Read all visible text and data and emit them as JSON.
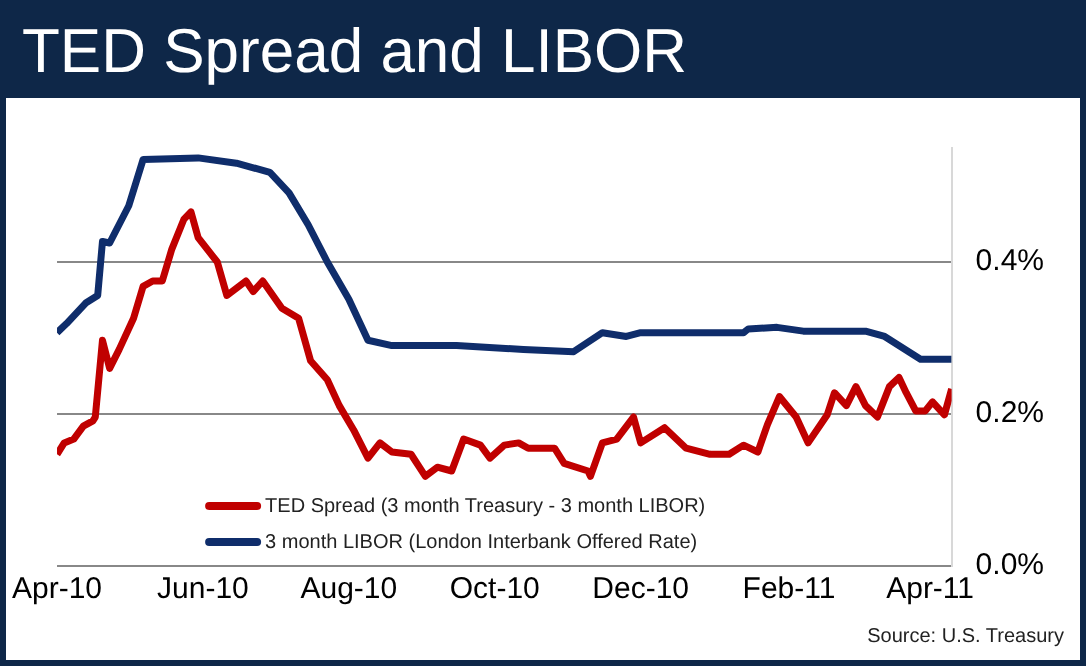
{
  "chart_data": {
    "type": "line",
    "title": "TED Spread and LIBOR",
    "xlim": [
      "2010-04-01",
      "2011-04-10"
    ],
    "xticks": [
      {
        "value": "2010-04-01",
        "label": "Apr-10"
      },
      {
        "value": "2010-06-01",
        "label": "Jun-10"
      },
      {
        "value": "2010-08-01",
        "label": "Aug-10"
      },
      {
        "value": "2010-10-01",
        "label": "Oct-10"
      },
      {
        "value": "2010-12-01",
        "label": "Dec-10"
      },
      {
        "value": "2011-02-01",
        "label": "Feb-11"
      },
      {
        "value": "2011-04-01",
        "label": "Apr-11"
      }
    ],
    "yticks": [
      {
        "value": 0,
        "label": "0.0%"
      },
      {
        "value": 0.2,
        "label": "0.2%"
      },
      {
        "value": 0.4,
        "label": "0.4%"
      }
    ],
    "ylim": [
      0,
      0.55
    ],
    "grid": "y",
    "legend": "bottom",
    "series": [
      {
        "name": "TED Spread (3 month Treasury - 3 month LIBOR)",
        "color": "#c00000",
        "x": [
          "2010-04-01",
          "2010-04-04",
          "2010-04-08",
          "2010-04-12",
          "2010-04-16",
          "2010-04-17",
          "2010-04-20",
          "2010-04-23",
          "2010-04-27",
          "2010-05-03",
          "2010-05-07",
          "2010-05-11",
          "2010-05-15",
          "2010-05-19",
          "2010-05-24",
          "2010-05-27",
          "2010-05-30",
          "2010-06-07",
          "2010-06-11",
          "2010-06-19",
          "2010-06-22",
          "2010-06-26",
          "2010-07-04",
          "2010-07-11",
          "2010-07-16",
          "2010-07-23",
          "2010-07-28",
          "2010-08-03",
          "2010-08-09",
          "2010-08-14",
          "2010-08-19",
          "2010-08-27",
          "2010-09-02",
          "2010-09-07",
          "2010-09-13",
          "2010-09-18",
          "2010-09-25",
          "2010-09-29",
          "2010-10-05",
          "2010-10-11",
          "2010-10-15",
          "2010-10-26",
          "2010-10-30",
          "2010-11-09",
          "2010-11-10",
          "2010-11-15",
          "2010-11-21",
          "2010-11-28",
          "2010-12-01",
          "2010-12-11",
          "2010-12-20",
          "2010-12-30",
          "2011-01-07",
          "2011-01-13",
          "2011-01-19",
          "2011-01-23",
          "2011-01-28",
          "2011-02-04",
          "2011-02-09",
          "2011-02-17",
          "2011-02-20",
          "2011-02-25",
          "2011-03-01",
          "2011-03-05",
          "2011-03-10",
          "2011-03-15",
          "2011-03-19",
          "2011-03-22",
          "2011-03-26",
          "2011-03-30",
          "2011-04-02",
          "2011-04-07",
          "2011-04-10"
        ],
        "values": [
          0.147,
          0.162,
          0.167,
          0.184,
          0.191,
          0.196,
          0.297,
          0.26,
          0.285,
          0.326,
          0.368,
          0.375,
          0.375,
          0.417,
          0.456,
          0.466,
          0.432,
          0.4,
          0.356,
          0.375,
          0.361,
          0.375,
          0.339,
          0.326,
          0.27,
          0.245,
          0.211,
          0.179,
          0.142,
          0.162,
          0.15,
          0.147,
          0.118,
          0.13,
          0.125,
          0.167,
          0.159,
          0.142,
          0.159,
          0.162,
          0.155,
          0.155,
          0.135,
          0.125,
          0.118,
          0.162,
          0.167,
          0.196,
          0.162,
          0.182,
          0.155,
          0.147,
          0.147,
          0.159,
          0.15,
          0.186,
          0.223,
          0.196,
          0.162,
          0.199,
          0.228,
          0.211,
          0.236,
          0.211,
          0.196,
          0.236,
          0.248,
          0.228,
          0.204,
          0.204,
          0.216,
          0.199,
          0.233
        ]
      },
      {
        "name": "3 month LIBOR (London Interbank Offered Rate)",
        "color": "#0f2d6b",
        "x": [
          "2010-04-01",
          "2010-04-05",
          "2010-04-13",
          "2010-04-18",
          "2010-04-20",
          "2010-04-23",
          "2010-05-01",
          "2010-05-07",
          "2010-05-30",
          "2010-06-15",
          "2010-06-29",
          "2010-07-07",
          "2010-07-15",
          "2010-07-23",
          "2010-08-01",
          "2010-08-09",
          "2010-08-19",
          "2010-09-15",
          "2010-10-13",
          "2010-11-03",
          "2010-11-15",
          "2010-11-25",
          "2010-12-01",
          "2011-01-13",
          "2011-01-15",
          "2011-01-27",
          "2011-02-07",
          "2011-03-05",
          "2011-03-13",
          "2011-03-28",
          "2011-04-10"
        ],
        "values": [
          0.307,
          0.319,
          0.346,
          0.356,
          0.427,
          0.425,
          0.474,
          0.535,
          0.537,
          0.53,
          0.518,
          0.491,
          0.449,
          0.4,
          0.351,
          0.297,
          0.29,
          0.29,
          0.285,
          0.282,
          0.307,
          0.302,
          0.307,
          0.307,
          0.312,
          0.314,
          0.309,
          0.309,
          0.302,
          0.272,
          0.272
        ]
      }
    ],
    "annotations": [
      "Source:  U.S. Treasury"
    ]
  }
}
